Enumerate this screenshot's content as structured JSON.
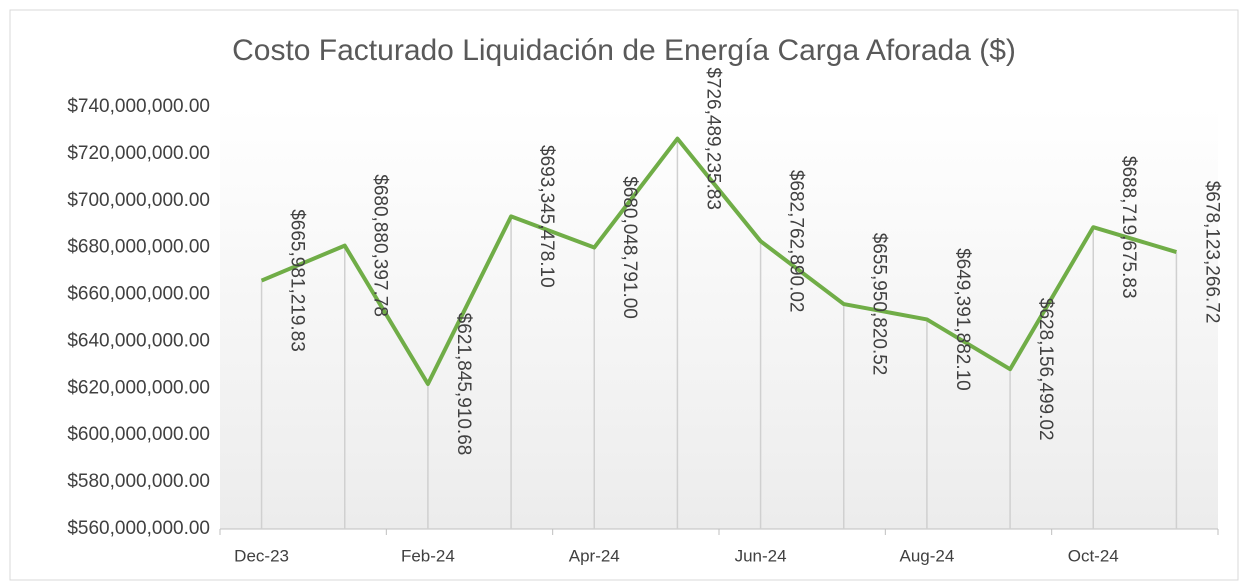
{
  "chart_data": {
    "type": "line",
    "title": "Costo Facturado  Liquidación de Energía Carga Aforada ($)",
    "categories": [
      "Dec-23",
      null,
      "Feb-24",
      null,
      "Apr-24",
      null,
      "Jun-24",
      null,
      "Aug-24",
      null,
      "Oct-24",
      null
    ],
    "series": [
      {
        "name": "Costo Facturado",
        "color": "#70ad47",
        "values": [
          665981219.83,
          680880397.78,
          621845910.68,
          693345478.1,
          680048791.0,
          726489235.83,
          682762890.02,
          655950820.52,
          649391882.1,
          628156499.02,
          688719675.83,
          678123266.72
        ],
        "value_labels": [
          "$665,981,219.83",
          "$680,880,397.78",
          "$621,845,910.68",
          "$693,345,478.10",
          "$680,048,791.00",
          "$726,489,235.83",
          "$682,762,890.02",
          "$655,950,820.52",
          "$649,391,882.10",
          "$628,156,499.02",
          "$688,719,675.83",
          "$678,123,266.72"
        ]
      }
    ],
    "ylim": [
      560000000,
      740000000
    ],
    "yticks": [
      {
        "value": 560000000,
        "label": "$560,000,000.00"
      },
      {
        "value": 580000000,
        "label": "$580,000,000.00"
      },
      {
        "value": 600000000,
        "label": "$600,000,000.00"
      },
      {
        "value": 620000000,
        "label": "$620,000,000.00"
      },
      {
        "value": 640000000,
        "label": "$640,000,000.00"
      },
      {
        "value": 660000000,
        "label": "$660,000,000.00"
      },
      {
        "value": 680000000,
        "label": "$680,000,000.00"
      },
      {
        "value": 700000000,
        "label": "$700,000,000.00"
      },
      {
        "value": 720000000,
        "label": "$720,000,000.00"
      },
      {
        "value": 740000000,
        "label": "$740,000,000.00"
      }
    ],
    "drop_lines": true
  }
}
